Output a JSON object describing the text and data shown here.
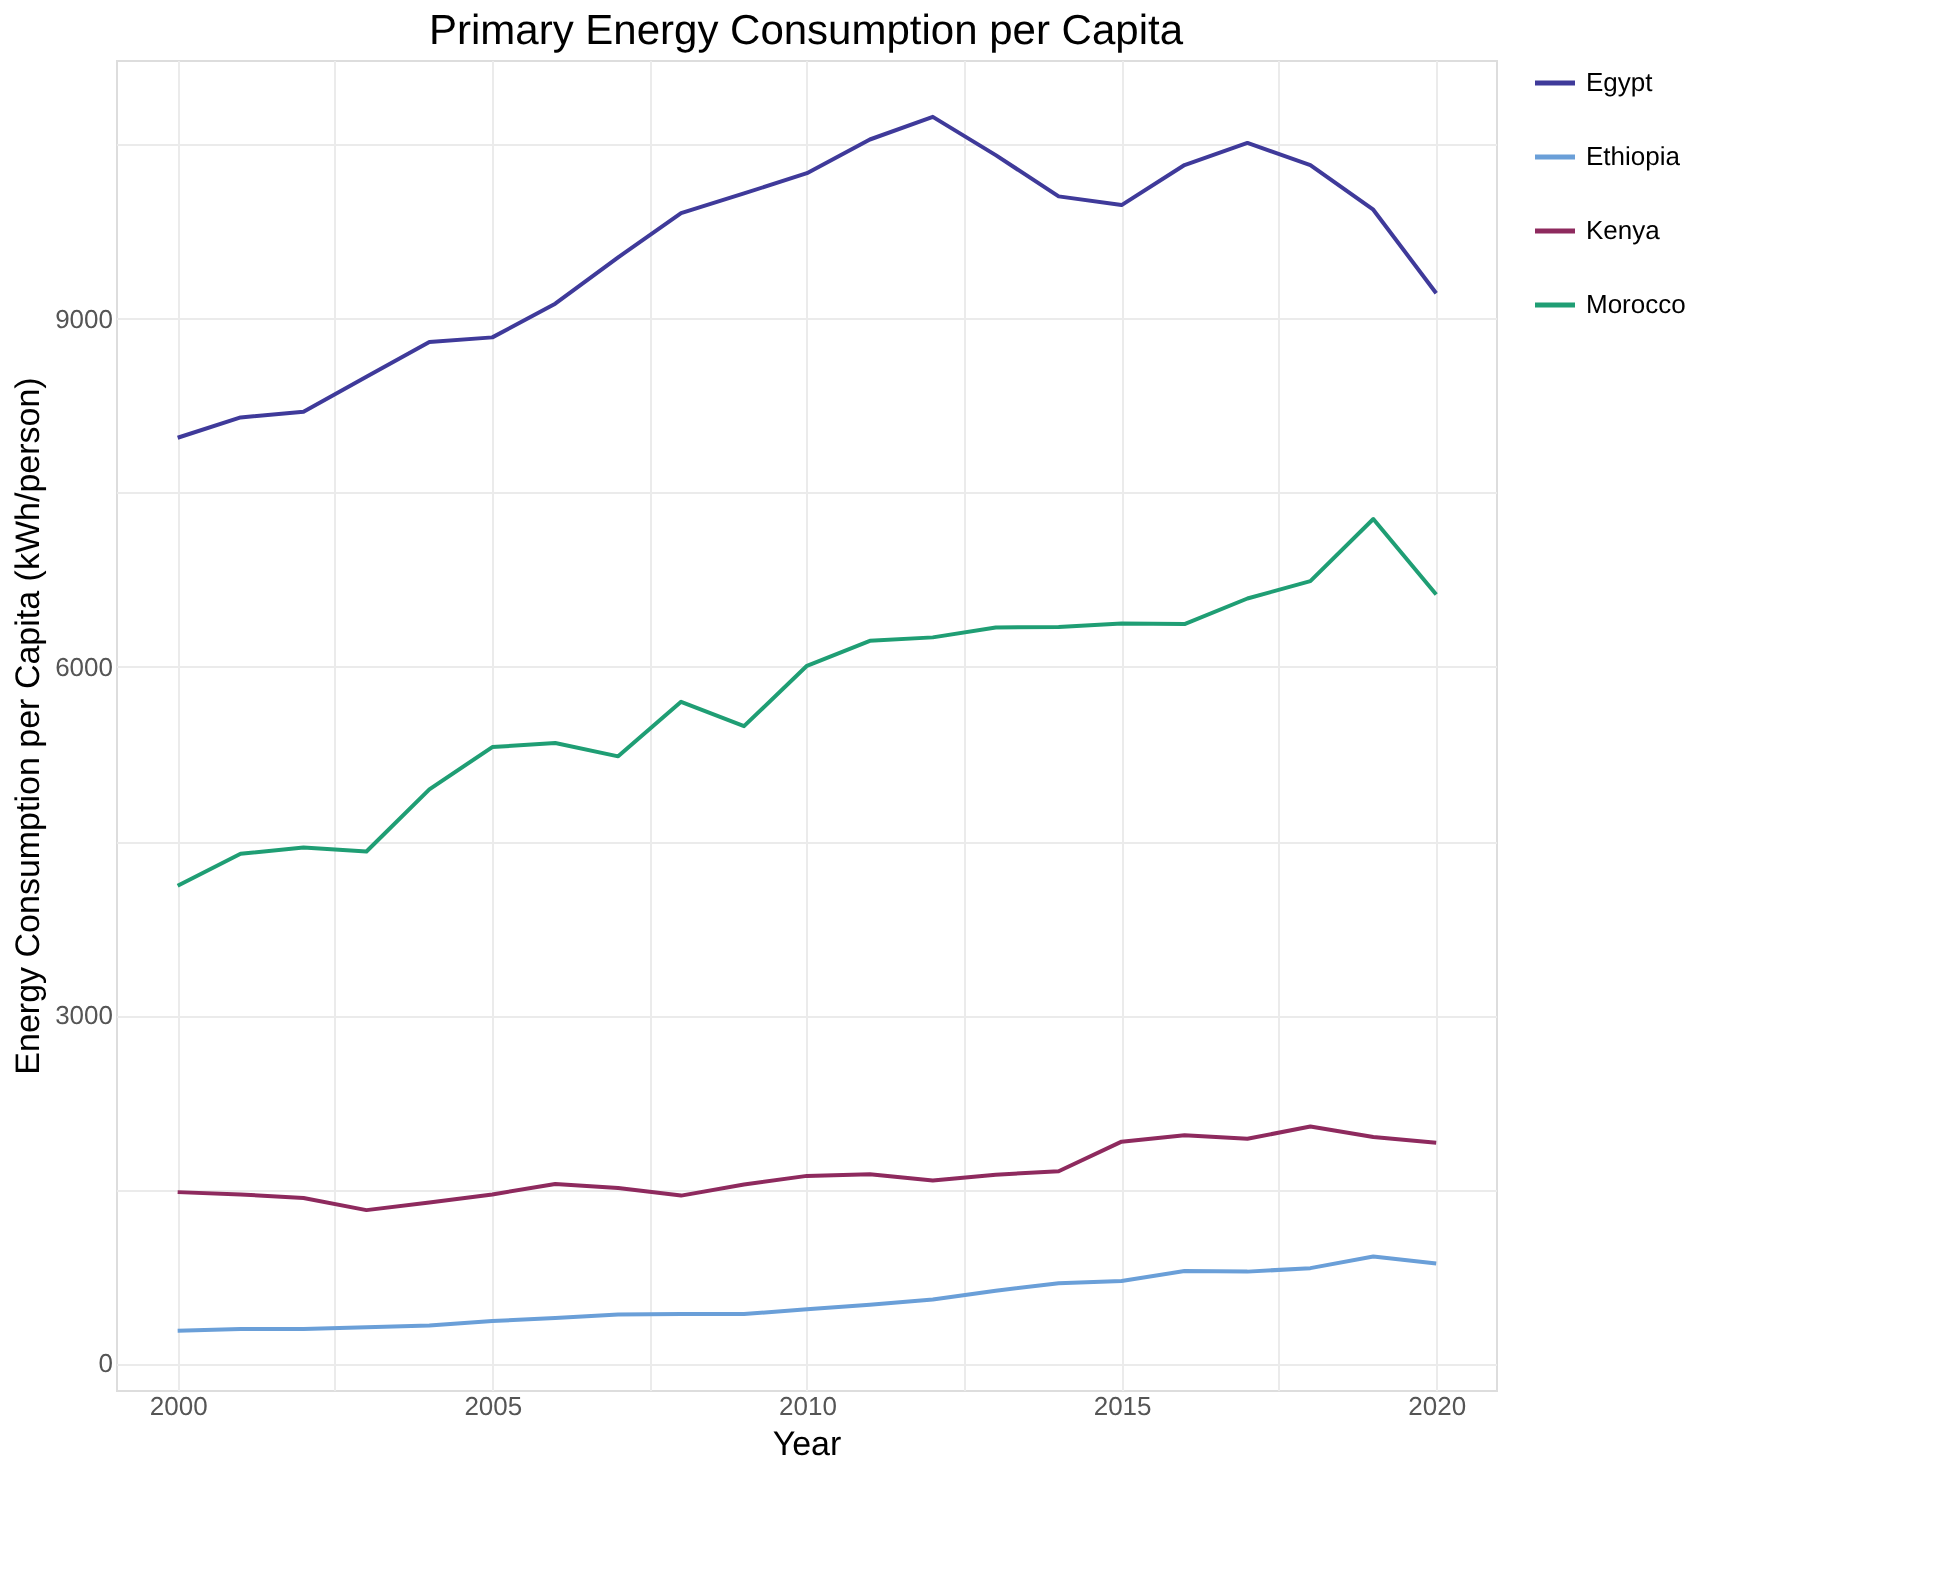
{
  "chart_data": {
    "type": "line",
    "title": "Primary Energy Consumption per Capita",
    "xlabel": "Year",
    "ylabel": "Energy Consumption per Capita (kWh/person)",
    "x": [
      2000,
      2001,
      2002,
      2003,
      2004,
      2005,
      2006,
      2007,
      2008,
      2009,
      2010,
      2011,
      2012,
      2013,
      2014,
      2015,
      2016,
      2017,
      2018,
      2019,
      2020
    ],
    "series": [
      {
        "name": "Egypt",
        "color": "#3f3a9a",
        "values": [
          7975,
          8150,
          8200,
          8500,
          8800,
          8840,
          9130,
          9530,
          9910,
          10080,
          10255,
          10545,
          10740,
          10410,
          10055,
          9980,
          10325,
          10515,
          10325,
          9940,
          9220
        ]
      },
      {
        "name": "Ethiopia",
        "color": "#6a9fd8",
        "values": [
          280,
          295,
          295,
          310,
          325,
          365,
          390,
          420,
          425,
          425,
          465,
          505,
          550,
          625,
          690,
          710,
          795,
          790,
          820,
          920,
          860
        ]
      },
      {
        "name": "Kenya",
        "color": "#8e2a5e",
        "values": [
          1475,
          1455,
          1425,
          1320,
          1385,
          1455,
          1545,
          1510,
          1445,
          1540,
          1615,
          1630,
          1575,
          1625,
          1655,
          1910,
          1965,
          1935,
          2040,
          1950,
          1900
        ]
      },
      {
        "name": "Morocco",
        "color": "#1f9e74",
        "values": [
          4115,
          4390,
          4445,
          4410,
          4945,
          5310,
          5345,
          5230,
          5700,
          5490,
          6010,
          6225,
          6255,
          6340,
          6345,
          6375,
          6370,
          6590,
          6740,
          7275,
          6625
        ]
      }
    ],
    "xlim": [
      1999.02,
      2020.95
    ],
    "ylim": [
      -230,
      11230
    ],
    "xticks": [
      2000,
      {
        "value": 2002.5,
        "label": null
      },
      2005,
      {
        "value": 2007.5,
        "label": null
      },
      2010,
      {
        "value": 2012.5,
        "label": null
      },
      2015,
      {
        "value": 2017.5,
        "label": null
      },
      2020
    ],
    "yticks": [
      0,
      {
        "value": 1500,
        "label": null
      },
      3000,
      {
        "value": 4500,
        "label": null
      },
      6000,
      {
        "value": 7500,
        "label": null
      },
      9000,
      {
        "value": 10500,
        "label": null
      }
    ],
    "grid": true,
    "legend": "right",
    "marker": "none",
    "line_style": "solid"
  }
}
